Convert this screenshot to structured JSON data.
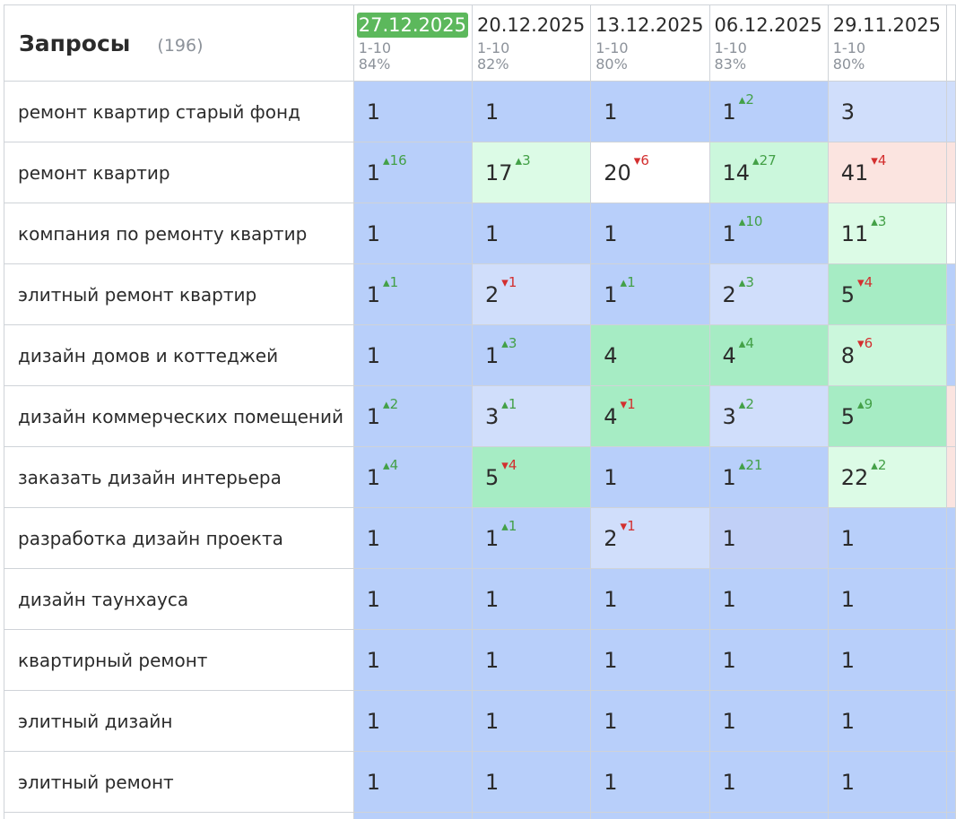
{
  "header": {
    "title": "Запросы",
    "count": "(196)",
    "columns": [
      {
        "date": "27.12.2025",
        "range": "1-10",
        "percent": "84%"
      },
      {
        "date": "20.12.2025",
        "range": "1-10",
        "percent": "82%"
      },
      {
        "date": "13.12.2025",
        "range": "1-10",
        "percent": "80%"
      },
      {
        "date": "06.12.2025",
        "range": "1-10",
        "percent": "83%"
      },
      {
        "date": "29.11.2025",
        "range": "1-10",
        "percent": "80%"
      }
    ]
  },
  "colors": {
    "active_date": "#5cb85c",
    "delta_up": "#43a047",
    "delta_down": "#d32f2f",
    "cell_blue": "#b8cffa",
    "cell_green": "#a6ecc4",
    "cell_pink": "#fbe4e0"
  },
  "rows": [
    {
      "query": "ремонт квартир старый фонд",
      "cells": [
        {
          "v": "1",
          "d": ""
        },
        {
          "v": "1",
          "d": ""
        },
        {
          "v": "1",
          "d": ""
        },
        {
          "v": "1",
          "d": "2",
          "dir": "up"
        },
        {
          "v": "3",
          "d": ""
        }
      ]
    },
    {
      "query": "ремонт квартир",
      "cells": [
        {
          "v": "1",
          "d": "16",
          "dir": "up"
        },
        {
          "v": "17",
          "d": "3",
          "dir": "up"
        },
        {
          "v": "20",
          "d": "6",
          "dir": "down"
        },
        {
          "v": "14",
          "d": "27",
          "dir": "up"
        },
        {
          "v": "41",
          "d": "4",
          "dir": "down"
        }
      ]
    },
    {
      "query": "компания по ремонту квартир",
      "cells": [
        {
          "v": "1",
          "d": ""
        },
        {
          "v": "1",
          "d": ""
        },
        {
          "v": "1",
          "d": ""
        },
        {
          "v": "1",
          "d": "10",
          "dir": "up"
        },
        {
          "v": "11",
          "d": "3",
          "dir": "up"
        }
      ]
    },
    {
      "query": "элитный ремонт квартир",
      "cells": [
        {
          "v": "1",
          "d": "1",
          "dir": "up"
        },
        {
          "v": "2",
          "d": "1",
          "dir": "down"
        },
        {
          "v": "1",
          "d": "1",
          "dir": "up"
        },
        {
          "v": "2",
          "d": "3",
          "dir": "up"
        },
        {
          "v": "5",
          "d": "4",
          "dir": "down"
        }
      ]
    },
    {
      "query": "дизайн домов и коттеджей",
      "cells": [
        {
          "v": "1",
          "d": ""
        },
        {
          "v": "1",
          "d": "3",
          "dir": "up"
        },
        {
          "v": "4",
          "d": ""
        },
        {
          "v": "4",
          "d": "4",
          "dir": "up"
        },
        {
          "v": "8",
          "d": "6",
          "dir": "down"
        }
      ]
    },
    {
      "query": "дизайн коммерческих помещений",
      "cells": [
        {
          "v": "1",
          "d": "2",
          "dir": "up"
        },
        {
          "v": "3",
          "d": "1",
          "dir": "up"
        },
        {
          "v": "4",
          "d": "1",
          "dir": "down"
        },
        {
          "v": "3",
          "d": "2",
          "dir": "up"
        },
        {
          "v": "5",
          "d": "9",
          "dir": "up"
        }
      ]
    },
    {
      "query": "заказать дизайн интерьера",
      "cells": [
        {
          "v": "1",
          "d": "4",
          "dir": "up"
        },
        {
          "v": "5",
          "d": "4",
          "dir": "down"
        },
        {
          "v": "1",
          "d": ""
        },
        {
          "v": "1",
          "d": "21",
          "dir": "up"
        },
        {
          "v": "22",
          "d": "2",
          "dir": "up"
        }
      ]
    },
    {
      "query": "разработка дизайн проекта",
      "cells": [
        {
          "v": "1",
          "d": ""
        },
        {
          "v": "1",
          "d": "1",
          "dir": "up"
        },
        {
          "v": "2",
          "d": "1",
          "dir": "down"
        },
        {
          "v": "1",
          "d": ""
        },
        {
          "v": "1",
          "d": ""
        }
      ]
    },
    {
      "query": "дизайн таунхауса",
      "cells": [
        {
          "v": "1",
          "d": ""
        },
        {
          "v": "1",
          "d": ""
        },
        {
          "v": "1",
          "d": ""
        },
        {
          "v": "1",
          "d": ""
        },
        {
          "v": "1",
          "d": ""
        }
      ]
    },
    {
      "query": "квартирный ремонт",
      "cells": [
        {
          "v": "1",
          "d": ""
        },
        {
          "v": "1",
          "d": ""
        },
        {
          "v": "1",
          "d": ""
        },
        {
          "v": "1",
          "d": ""
        },
        {
          "v": "1",
          "d": ""
        }
      ]
    },
    {
      "query": "элитный дизайн",
      "cells": [
        {
          "v": "1",
          "d": ""
        },
        {
          "v": "1",
          "d": ""
        },
        {
          "v": "1",
          "d": ""
        },
        {
          "v": "1",
          "d": ""
        },
        {
          "v": "1",
          "d": ""
        }
      ]
    },
    {
      "query": "элитный ремонт",
      "cells": [
        {
          "v": "1",
          "d": ""
        },
        {
          "v": "1",
          "d": ""
        },
        {
          "v": "1",
          "d": ""
        },
        {
          "v": "1",
          "d": ""
        },
        {
          "v": "1",
          "d": ""
        }
      ]
    }
  ]
}
